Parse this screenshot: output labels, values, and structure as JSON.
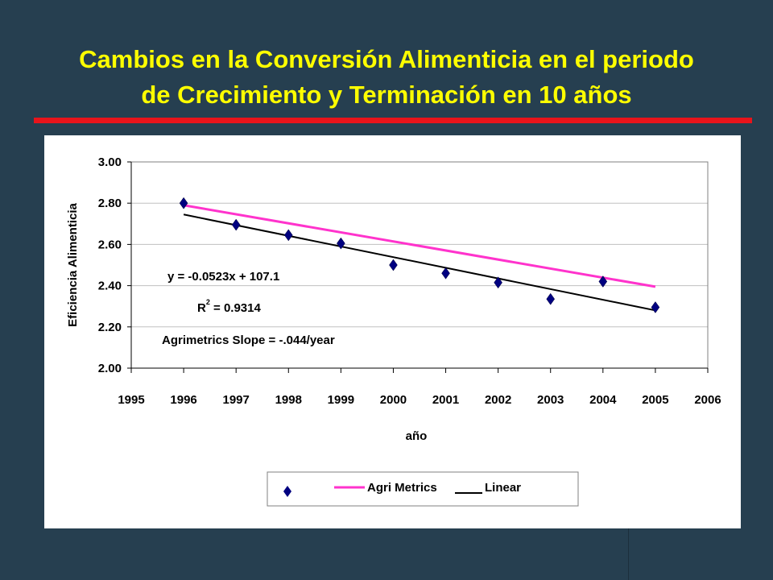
{
  "slide": {
    "title_line1": "Cambios en la Conversión Alimenticia en el periodo",
    "title_line2": "de Crecimiento y Terminación en 10 años"
  },
  "colors": {
    "background": "#263f50",
    "title": "#ffff00",
    "rule": "#e8141b",
    "marker": "#000080",
    "agri_line": "#ff33cc",
    "linear_line": "#000000",
    "grid": "#c0c0c0"
  },
  "chart_data": {
    "type": "scatter",
    "title": "",
    "xlabel": "año",
    "ylabel": "Eficiencia Alimenticia",
    "xlim": [
      1995,
      2006
    ],
    "ylim": [
      2.0,
      3.0
    ],
    "x_ticks": [
      "1995",
      "1996",
      "1997",
      "1998",
      "1999",
      "2000",
      "2001",
      "2002",
      "2003",
      "2004",
      "2005",
      "2006"
    ],
    "y_ticks": [
      "2.00",
      "2.20",
      "2.40",
      "2.60",
      "2.80",
      "3.00"
    ],
    "grid": "horizontal",
    "series": [
      {
        "kind": "points",
        "marker": "diamond",
        "x": [
          1996,
          1997,
          1998,
          1999,
          2000,
          2001,
          2002,
          2003,
          2004,
          2005
        ],
        "y": [
          2.8,
          2.695,
          2.645,
          2.605,
          2.5,
          2.46,
          2.415,
          2.335,
          2.42,
          2.295
        ]
      },
      {
        "name": "Agri Metrics",
        "kind": "line",
        "x": [
          1996,
          2005
        ],
        "y": [
          2.79,
          2.395
        ]
      },
      {
        "name": "Linear",
        "kind": "line",
        "x": [
          1996,
          2005
        ],
        "y": [
          2.745,
          2.28
        ]
      }
    ],
    "annotations": {
      "equation": "y = -0.0523x + 107.1",
      "r2_prefix": "R",
      "r2_exp": "2",
      "r2_value": " = 0.9314",
      "slope_note": "Agrimetrics Slope = -.044/year"
    },
    "legend": {
      "placement": "bottom",
      "agri_label": "Agri Metrics",
      "linear_label": "Linear"
    }
  }
}
